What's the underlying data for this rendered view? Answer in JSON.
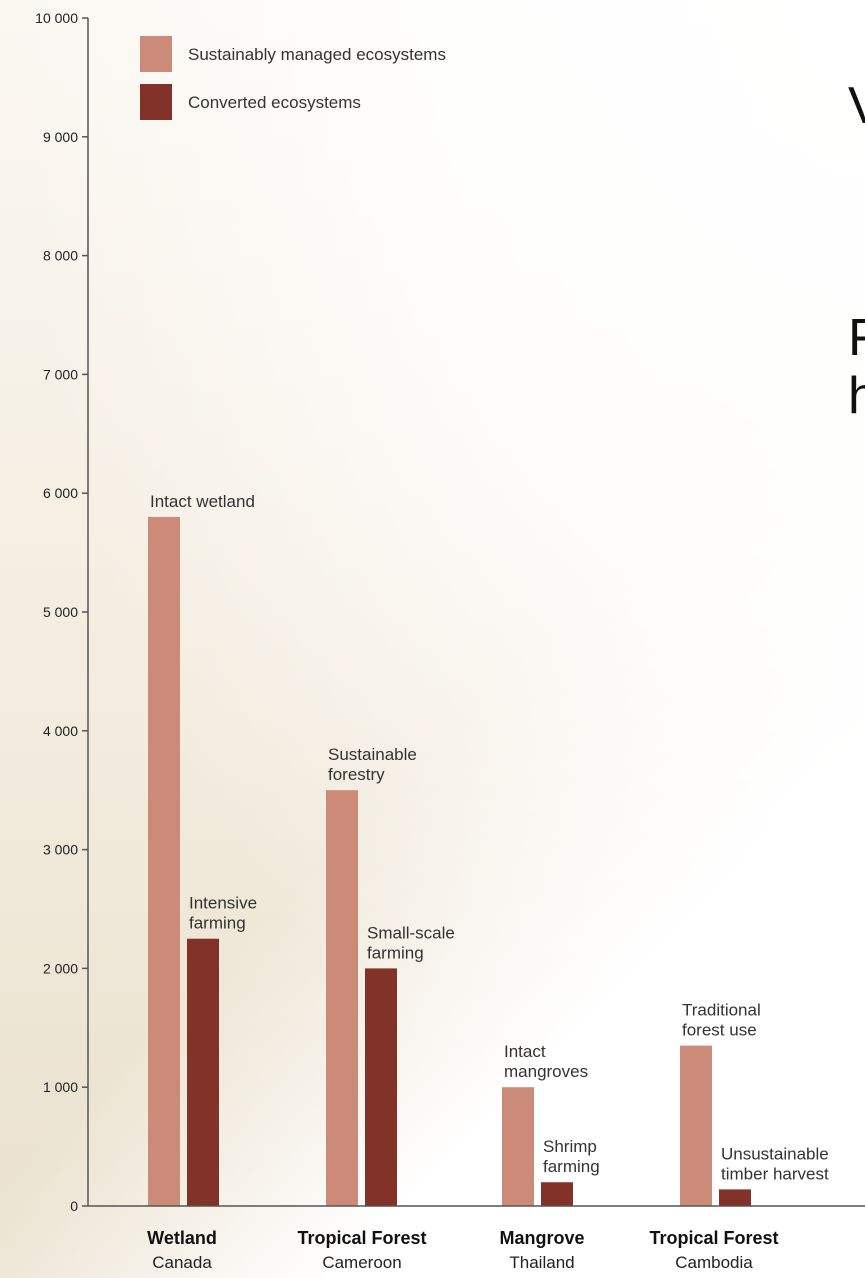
{
  "chart_data": {
    "type": "bar",
    "ylim": [
      0,
      10000
    ],
    "yticks": [
      "0",
      "1 000",
      "2 000",
      "3 000",
      "4 000",
      "5 000",
      "6 000",
      "7 000",
      "8 000",
      "9 000",
      "10 000"
    ],
    "categories": [
      {
        "name": "Wetland",
        "sub": "Canada"
      },
      {
        "name": "Tropical Forest",
        "sub": "Cameroon"
      },
      {
        "name": "Mangrove",
        "sub": "Thailand"
      },
      {
        "name": "Tropical Forest",
        "sub": "Cambodia"
      }
    ],
    "series": [
      {
        "name": "Sustainably managed ecosystems",
        "color": "#cc8a78",
        "values": [
          5800,
          3500,
          1000,
          1350
        ],
        "labels": [
          [
            "Intact wetland"
          ],
          [
            "Sustainable",
            "forestry"
          ],
          [
            "Intact",
            "mangroves"
          ],
          [
            "Traditional",
            "forest use"
          ]
        ]
      },
      {
        "name": "Converted ecosystems",
        "color": "#83322a",
        "values": [
          2250,
          2000,
          200,
          140
        ],
        "labels": [
          [
            "Intensive",
            "farming"
          ],
          [
            "Small-scale",
            "farming"
          ],
          [
            "Shrimp",
            "farming"
          ],
          [
            "Unsustainable",
            "timber harvest"
          ]
        ]
      }
    ],
    "legend_position": "top-left",
    "grid": false
  },
  "side_text": [
    "V",
    "F",
    "h"
  ]
}
